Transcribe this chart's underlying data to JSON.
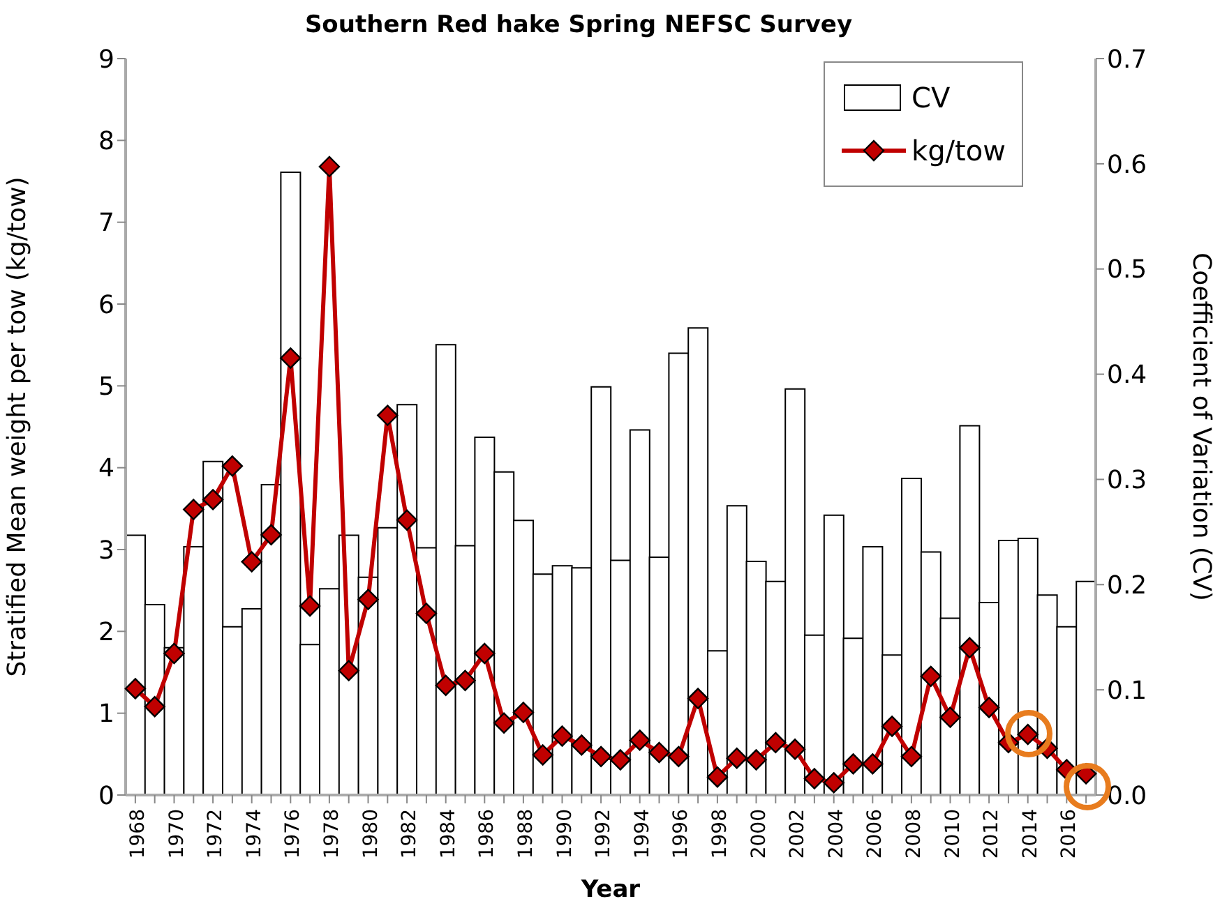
{
  "chart_data": {
    "type": "bar",
    "title": "Southern Red hake Spring NEFSC Survey",
    "xlabel": "Year",
    "ylabel": "Stratified Mean weight per tow (kg/tow)",
    "y2label": "Coefficient of Variation (CV)",
    "categories": [
      "1968",
      null,
      "1970",
      null,
      "1972",
      null,
      "1974",
      null,
      "1976",
      null,
      "1978",
      null,
      "1980",
      null,
      "1982",
      null,
      "1984",
      null,
      "1986",
      null,
      "1988",
      null,
      "1990",
      null,
      "1992",
      null,
      "1994",
      null,
      "1996",
      null,
      "1998",
      null,
      "2000",
      null,
      "2002",
      null,
      "2004",
      null,
      "2006",
      null,
      "2008",
      null,
      "2010",
      null,
      "2012",
      null,
      "2014",
      null,
      "2016",
      null
    ],
    "series": [
      {
        "name": "CV",
        "axis": "y2",
        "color": "#ffffff",
        "values": [
          0.247,
          0.181,
          0.14,
          0.236,
          0.317,
          0.16,
          0.177,
          0.295,
          0.592,
          0.143,
          0.196,
          0.247,
          0.207,
          0.254,
          0.371,
          0.235,
          0.428,
          0.237,
          0.34,
          0.307,
          0.261,
          0.21,
          0.218,
          0.216,
          0.388,
          0.223,
          0.347,
          0.226,
          0.42,
          0.444,
          0.137,
          0.275,
          0.222,
          0.203,
          0.386,
          0.152,
          0.266,
          0.149,
          0.236,
          0.133,
          0.301,
          0.231,
          0.168,
          0.351,
          0.183,
          0.242,
          0.244,
          0.19,
          0.16,
          0.203
        ]
      },
      {
        "name": "kg/tow",
        "type": "line",
        "color": "#c00000",
        "values": [
          1.3,
          1.08,
          1.73,
          3.49,
          3.61,
          4.02,
          2.85,
          3.18,
          5.34,
          2.31,
          7.68,
          1.52,
          2.39,
          4.64,
          3.36,
          2.22,
          1.34,
          1.4,
          1.73,
          0.88,
          1.01,
          0.49,
          0.72,
          0.61,
          0.47,
          0.43,
          0.67,
          0.52,
          0.47,
          1.18,
          0.22,
          0.45,
          0.43,
          0.64,
          0.56,
          0.2,
          0.15,
          0.38,
          0.38,
          0.84,
          0.47,
          1.45,
          0.95,
          1.8,
          1.07,
          0.64,
          0.74,
          0.57,
          0.31,
          0.26
        ]
      }
    ],
    "ylim": [
      0,
      9
    ],
    "yticks": [
      0,
      1,
      2,
      3,
      4,
      5,
      6,
      7,
      8,
      9
    ],
    "y2lim": [
      0,
      0.7
    ],
    "y2ticks": [
      {
        "value": 0,
        "label": "0.0"
      },
      {
        "value": 0.1,
        "label": "0.1"
      },
      {
        "value": 0.2,
        "label": "0.2"
      },
      {
        "value": 0.3,
        "label": "0.3"
      },
      {
        "value": 0.4,
        "label": "0.4"
      },
      {
        "value": 0.5,
        "label": "0.5"
      },
      {
        "value": 0.6,
        "label": "0.6"
      },
      {
        "value": 0.7,
        "label": "0.7"
      }
    ],
    "legend": "top right",
    "marker": "diamond",
    "line_style": "solid",
    "grid": false
  }
}
